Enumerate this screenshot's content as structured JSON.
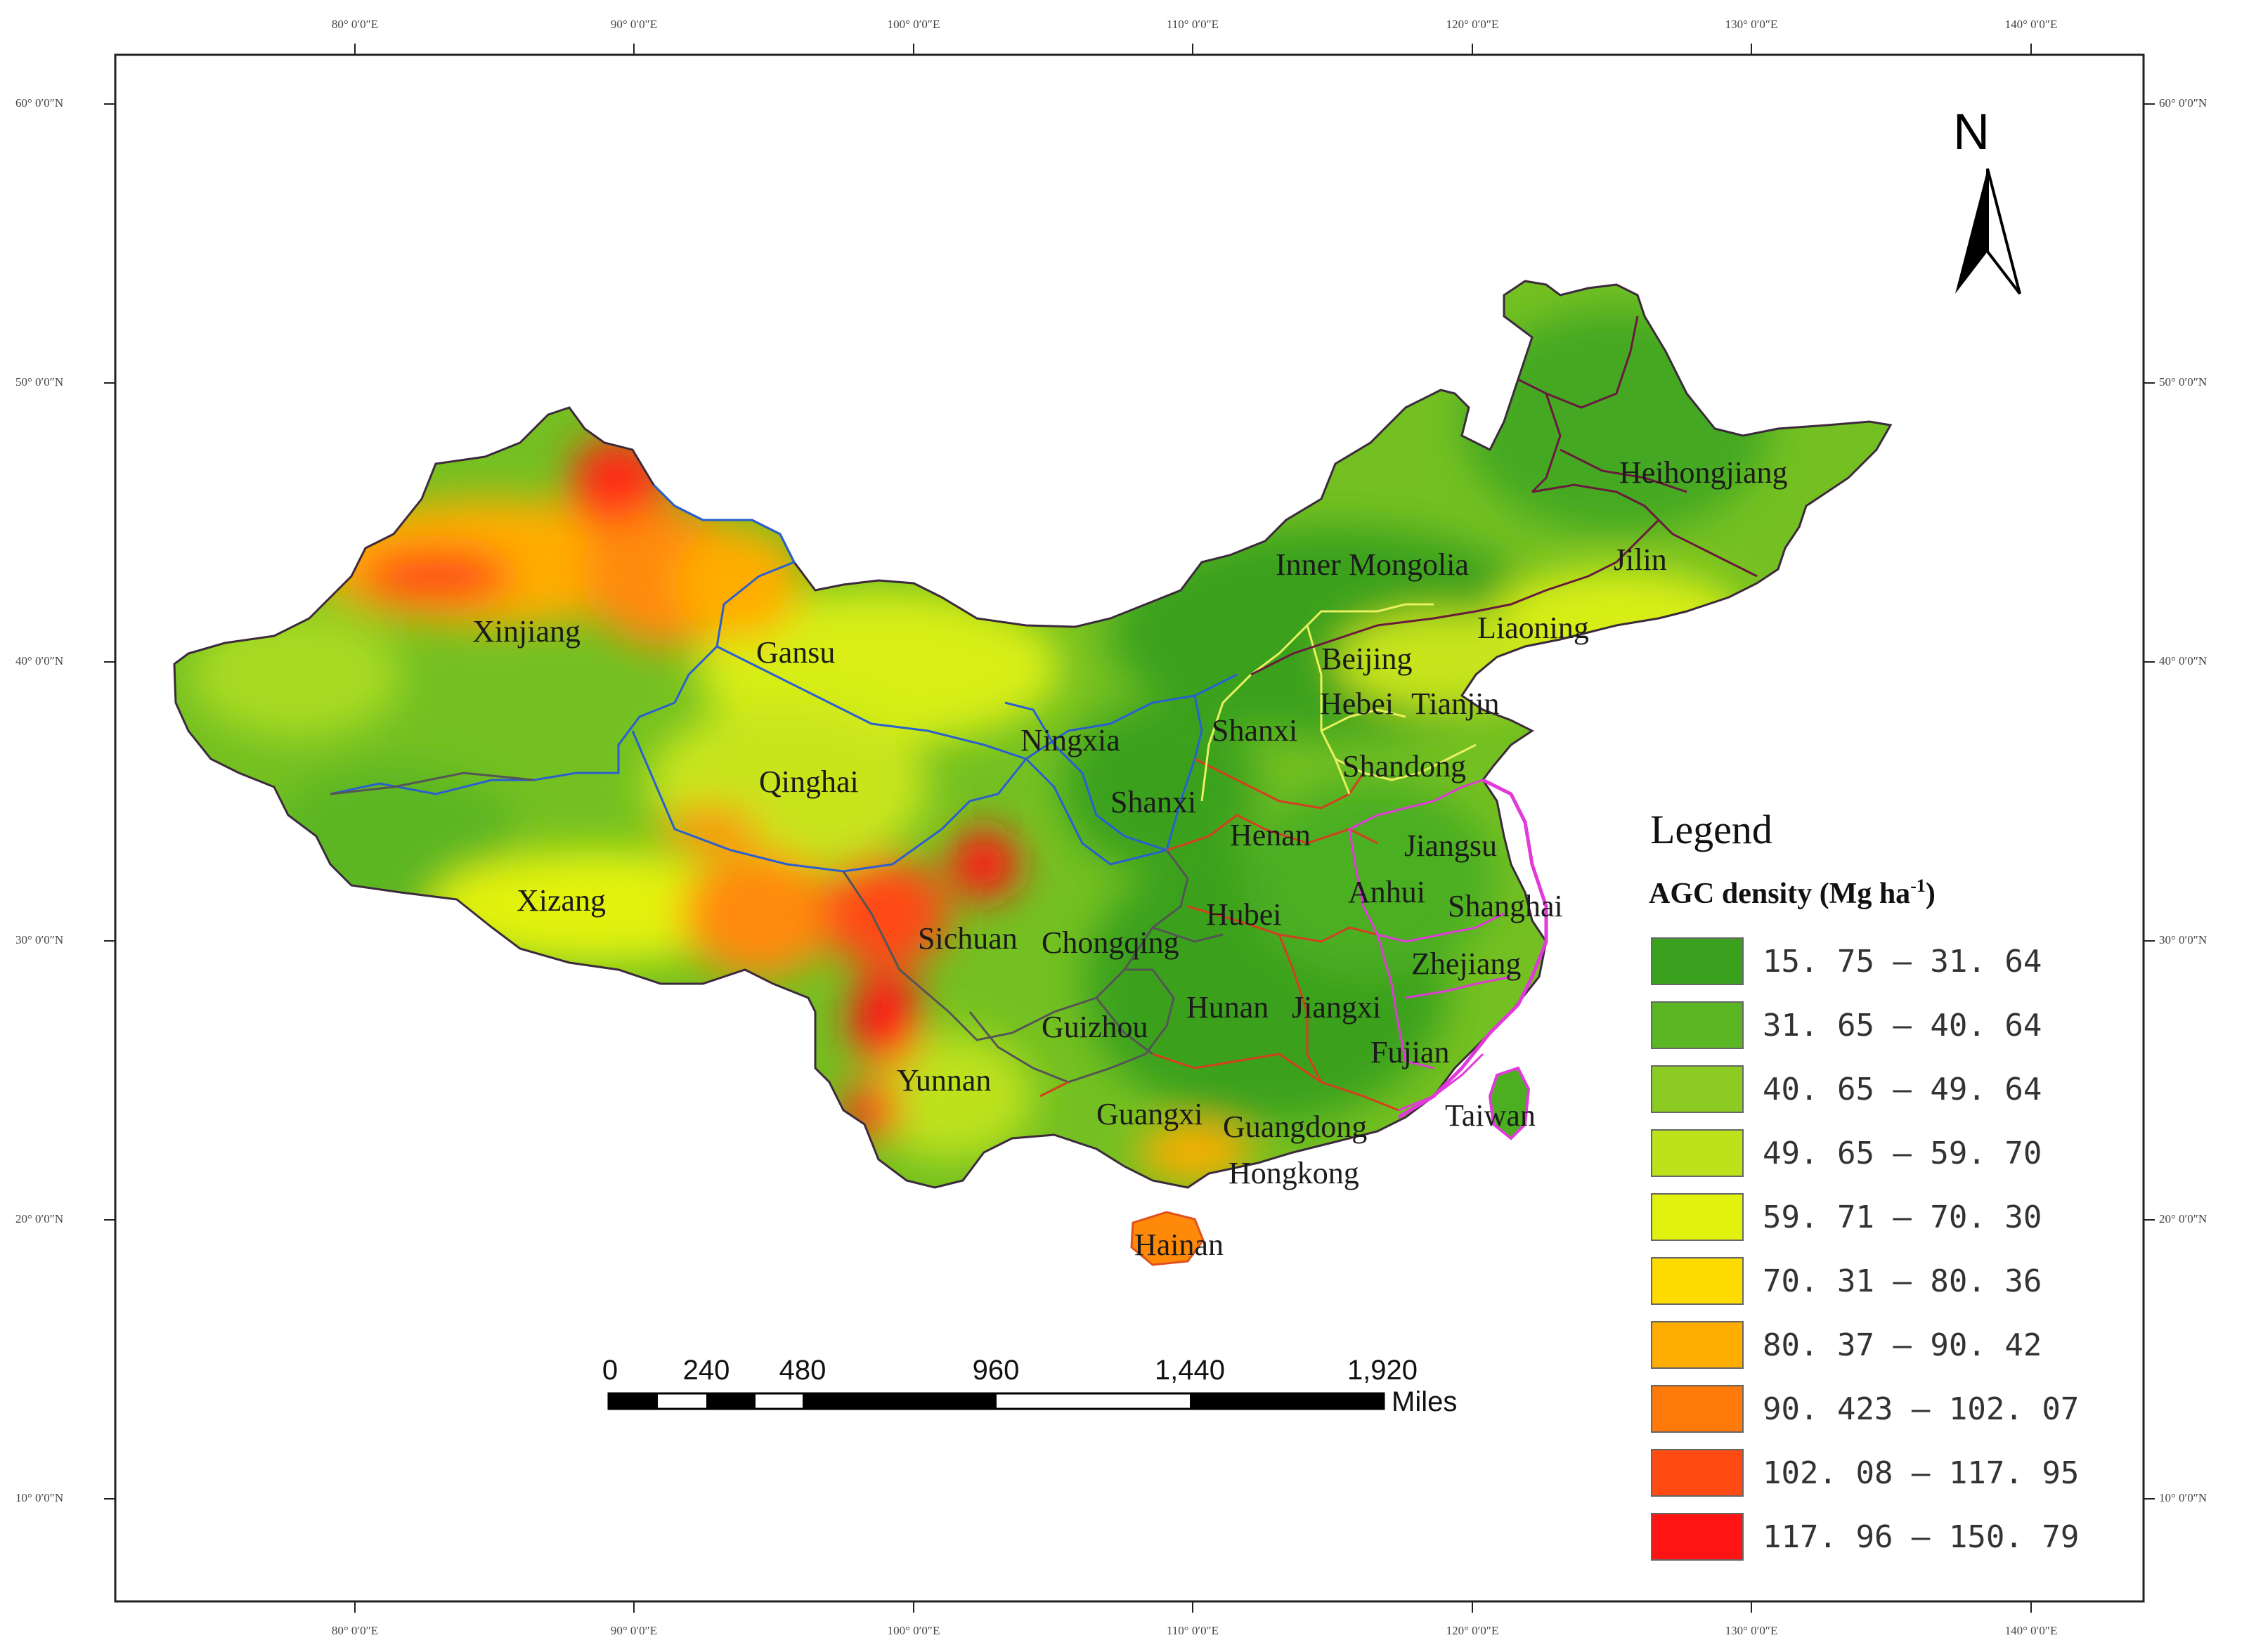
{
  "graticule": {
    "lon_labels": [
      "80° 0′0″E",
      "90° 0′0″E",
      "100° 0′0″E",
      "110° 0′0″E",
      "120° 0′0″E",
      "130° 0′0″E",
      "140° 0′0″E"
    ],
    "lat_labels": [
      "60° 0′0″N",
      "50° 0′0″N",
      "40° 0′0″N",
      "30° 0′0″N",
      "20° 0′0″N",
      "10° 0′0″N"
    ]
  },
  "north_arrow": {
    "label": "N"
  },
  "legend": {
    "title": "Legend",
    "subtitle": "AGC density (Mg ha",
    "subtitle_sup": "-1",
    "subtitle_end": ")",
    "classes": [
      {
        "label": "15. 75  –  31. 64",
        "color": "#3aa11f"
      },
      {
        "label": "31. 65  –  40. 64",
        "color": "#5bb624"
      },
      {
        "label": "40. 65  –  49. 64",
        "color": "#8ccc22"
      },
      {
        "label": "49. 65  –  59. 70",
        "color": "#bde21a"
      },
      {
        "label": "59. 71  –  70. 30",
        "color": "#e2f20f"
      },
      {
        "label": "70. 31  –  80. 36",
        "color": "#ffdc00"
      },
      {
        "label": "80. 37  –  90. 42",
        "color": "#ffad00"
      },
      {
        "label": "90. 423  –  102. 07",
        "color": "#ff7a0a"
      },
      {
        "label": "102. 08  –  117. 95",
        "color": "#ff4a12"
      },
      {
        "label": "117. 96  –  150. 79",
        "color": "#ff1414"
      }
    ]
  },
  "scale_bar": {
    "ticks": [
      "0",
      "240",
      "480",
      "960",
      "1,440",
      "1,920"
    ],
    "unit": "Miles"
  },
  "provinces": [
    "Xinjiang",
    "Gansu",
    "Qinghai",
    "Xizang",
    "Inner Mongolia",
    "Heihongjiang",
    "Jilin",
    "Liaoning",
    "Beijing",
    "Hebei",
    "Tianjin",
    "Shanxi",
    "Ningxia",
    "Shanxi",
    "Shandong",
    "Henan",
    "Jiangsu",
    "Anhui",
    "Shanghai",
    "Hubei",
    "Sichuan",
    "Chongqing",
    "Zhejiang",
    "Hunan",
    "Jiangxi",
    "Guizhou",
    "Fujian",
    "Yunnan",
    "Taiwan",
    "Guangxi",
    "Guangdong",
    "Hongkong",
    "Hainan"
  ]
}
